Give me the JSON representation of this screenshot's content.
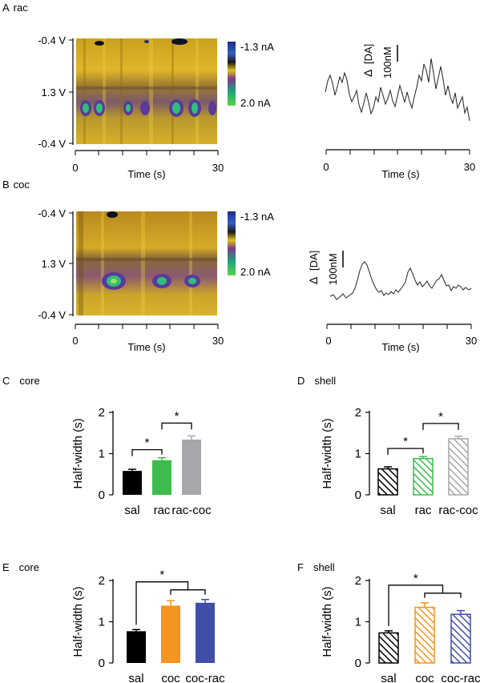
{
  "panels": {
    "A": {
      "letter": "A",
      "label": "rac"
    },
    "B": {
      "letter": "B",
      "label": "coc"
    },
    "C": {
      "letter": "C",
      "label": "core"
    },
    "D": {
      "letter": "D",
      "label": "shell"
    },
    "E": {
      "letter": "E",
      "label": "core"
    },
    "F": {
      "letter": "F",
      "label": "shell"
    }
  },
  "heatmap": {
    "yticks": [
      "-0.4 V",
      "1.3 V",
      "-0.4 V"
    ],
    "colorbar": {
      "top": "-1.3 nA",
      "bottom": "2.0 nA"
    },
    "xticks": [
      "0",
      "30"
    ],
    "xlabel": "Time (s)"
  },
  "trace": {
    "scale_symbol": "Δ",
    "scale_label": "[DA]",
    "scale_value": "100nM",
    "xticks": [
      "0",
      "30"
    ],
    "xlabel": "Time (s)"
  },
  "colors": {
    "sal": "#000000",
    "rac": "#3dbb4c",
    "rac_coc": "#a7a7a9",
    "coc": "#f7941d",
    "coc_rac": "#3f4fa8"
  },
  "chart_data": [
    {
      "panel": "C",
      "type": "bar",
      "title": "core",
      "ylabel": "Half-width (s)",
      "ylim": [
        0,
        2
      ],
      "yticks": [
        "0",
        "1",
        "2"
      ],
      "categories": [
        "sal",
        "rac",
        "rac-coc"
      ],
      "values": [
        0.58,
        0.84,
        1.34
      ],
      "errors": [
        0.04,
        0.06,
        0.09
      ],
      "hatched": false,
      "colors": [
        "#000000",
        "#3dbb4c",
        "#a7a7a9"
      ],
      "significance": [
        {
          "pair": [
            0,
            1
          ],
          "label": "*"
        },
        {
          "pair": [
            1,
            2
          ],
          "label": "*"
        }
      ]
    },
    {
      "panel": "D",
      "type": "bar",
      "title": "shell",
      "ylabel": "Half-width (s)",
      "ylim": [
        0,
        2
      ],
      "yticks": [
        "0",
        "1",
        "2"
      ],
      "categories": [
        "sal",
        "rac",
        "rac-coc"
      ],
      "values": [
        0.63,
        0.88,
        1.36
      ],
      "errors": [
        0.05,
        0.05,
        0.06
      ],
      "hatched": true,
      "colors": [
        "#000000",
        "#3dbb4c",
        "#a7a7a9"
      ],
      "significance": [
        {
          "pair": [
            0,
            1
          ],
          "label": "*"
        },
        {
          "pair": [
            1,
            2
          ],
          "label": "*"
        }
      ]
    },
    {
      "panel": "E",
      "type": "bar",
      "title": "core",
      "ylabel": "Half-width (s)",
      "ylim": [
        0,
        2
      ],
      "yticks": [
        "0",
        "1",
        "2"
      ],
      "categories": [
        "sal",
        "coc",
        "coc-rac"
      ],
      "values": [
        0.77,
        1.39,
        1.46
      ],
      "errors": [
        0.04,
        0.12,
        0.08
      ],
      "hatched": false,
      "colors": [
        "#000000",
        "#f7941d",
        "#3f4fa8"
      ],
      "significance": [
        {
          "pair": [
            0,
            "12"
          ],
          "label": "*"
        }
      ]
    },
    {
      "panel": "F",
      "type": "bar",
      "title": "shell",
      "ylabel": "Half-width (s)",
      "ylim": [
        0,
        2
      ],
      "yticks": [
        "0",
        "1",
        "2"
      ],
      "categories": [
        "sal",
        "coc",
        "coc-rac"
      ],
      "values": [
        0.73,
        1.35,
        1.18
      ],
      "errors": [
        0.05,
        0.11,
        0.09
      ],
      "hatched": true,
      "colors": [
        "#000000",
        "#f7941d",
        "#3f4fa8"
      ],
      "significance": [
        {
          "pair": [
            0,
            "12"
          ],
          "label": "*"
        }
      ]
    }
  ]
}
